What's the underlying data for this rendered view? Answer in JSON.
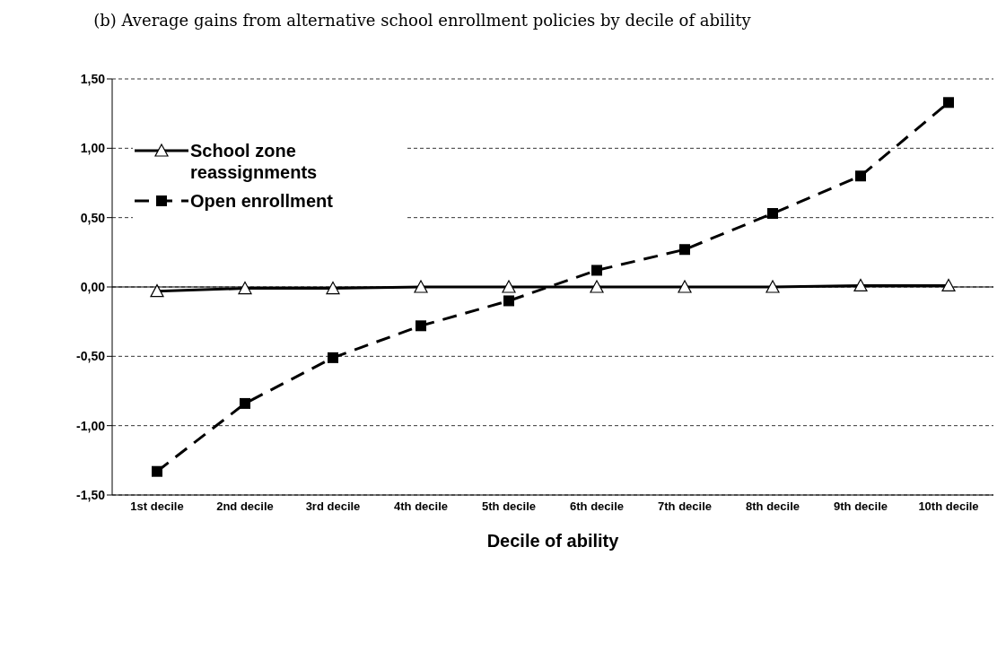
{
  "chart_data": {
    "type": "line",
    "title": "(b) Average gains from alternative school enrollment policies by decile of ability",
    "xlabel": "Decile of ability",
    "categories": [
      "1st decile",
      "2nd decile",
      "3rd decile",
      "4th decile",
      "5th decile",
      "6th decile",
      "7th decile",
      "8th decile",
      "9th decile",
      "10th decile"
    ],
    "series": [
      {
        "name": "School zone reassignments",
        "color": "#000000",
        "marker": "triangle",
        "line_style": "solid",
        "values": [
          -0.03,
          -0.01,
          -0.01,
          0.0,
          0.0,
          0.0,
          0.0,
          0.0,
          0.01,
          0.01
        ]
      },
      {
        "name": "Open enrollment",
        "color": "#000000",
        "marker": "square",
        "line_style": "dashed",
        "values": [
          -1.33,
          -0.84,
          -0.51,
          -0.28,
          -0.1,
          0.12,
          0.27,
          0.53,
          0.8,
          1.33
        ]
      }
    ],
    "ylim": [
      -1.5,
      1.5
    ],
    "yticks": [
      {
        "value": -1.5,
        "label": "-1,50"
      },
      {
        "value": -1.0,
        "label": "-1,00"
      },
      {
        "value": -0.5,
        "label": "-0,50"
      },
      {
        "value": 0,
        "label": "0,00"
      },
      {
        "value": 0.5,
        "label": "0,50"
      },
      {
        "value": 1.0,
        "label": "1,00"
      },
      {
        "value": 1.5,
        "label": "1,50"
      }
    ],
    "grid": "y",
    "legend": "top left",
    "ref_lines": [
      {
        "axis": "y",
        "value": 0,
        "color": "#000000",
        "line_style": "solid"
      }
    ]
  }
}
